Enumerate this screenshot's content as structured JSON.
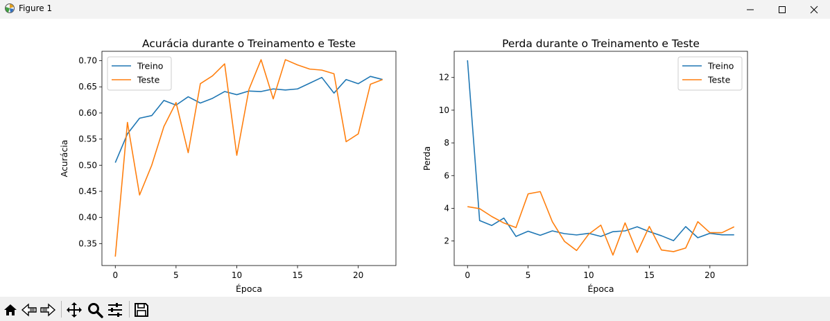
{
  "window": {
    "title": "Figure 1",
    "icon": "matplotlib-icon",
    "controls": [
      "minimize-icon",
      "maximize-icon",
      "close-icon"
    ]
  },
  "toolbar": {
    "buttons": [
      "home-icon",
      "back-arrow-icon",
      "forward-arrow-icon",
      "pan-icon",
      "zoom-icon",
      "configure-subplots-icon",
      "save-icon"
    ]
  },
  "colors": {
    "treino": "#1f77b4",
    "teste": "#ff7f0e"
  },
  "chart_data": [
    {
      "type": "line",
      "title": "Acurácia durante o Treinamento e Teste",
      "xlabel": "Época",
      "ylabel": "Acurácia",
      "xlim": [
        -1.1,
        23.1
      ],
      "ylim": [
        0.308,
        0.718
      ],
      "xticks": [
        0,
        5,
        10,
        15,
        20
      ],
      "yticks": [
        0.35,
        0.4,
        0.45,
        0.5,
        0.55,
        0.6,
        0.65,
        0.7
      ],
      "ytick_labels": [
        "0.35",
        "0.40",
        "0.45",
        "0.50",
        "0.55",
        "0.60",
        "0.65",
        "0.70"
      ],
      "legend": "upper-left",
      "x": [
        0,
        1,
        2,
        3,
        4,
        5,
        6,
        7,
        8,
        9,
        10,
        11,
        12,
        13,
        14,
        15,
        16,
        17,
        18,
        19,
        20,
        21,
        22
      ],
      "series": [
        {
          "name": "Treino",
          "color": "#1f77b4",
          "values": [
            0.505,
            0.56,
            0.59,
            0.595,
            0.624,
            0.615,
            0.631,
            0.619,
            0.628,
            0.641,
            0.635,
            0.642,
            0.641,
            0.646,
            0.644,
            0.646,
            0.657,
            0.668,
            0.638,
            0.664,
            0.656,
            0.67,
            0.664
          ]
        },
        {
          "name": "Teste",
          "color": "#ff7f0e",
          "values": [
            0.325,
            0.582,
            0.443,
            0.5,
            0.574,
            0.62,
            0.524,
            0.656,
            0.671,
            0.694,
            0.519,
            0.645,
            0.702,
            0.627,
            0.702,
            0.692,
            0.684,
            0.682,
            0.675,
            0.545,
            0.56,
            0.655,
            0.664
          ]
        }
      ]
    },
    {
      "type": "line",
      "title": "Perda durante o Treinamento e Teste",
      "xlabel": "Época",
      "ylabel": "Perda",
      "xlim": [
        -1.1,
        23.1
      ],
      "ylim": [
        0.5,
        13.6
      ],
      "xticks": [
        0,
        5,
        10,
        15,
        20
      ],
      "yticks": [
        2,
        4,
        6,
        8,
        10,
        12
      ],
      "ytick_labels": [
        "2",
        "4",
        "6",
        "8",
        "10",
        "12"
      ],
      "legend": "upper-right",
      "x": [
        0,
        1,
        2,
        3,
        4,
        5,
        6,
        7,
        8,
        9,
        10,
        11,
        12,
        13,
        14,
        15,
        16,
        17,
        18,
        19,
        20,
        21,
        22
      ],
      "series": [
        {
          "name": "Treino",
          "color": "#1f77b4",
          "values": [
            13.05,
            3.25,
            2.95,
            3.4,
            2.28,
            2.6,
            2.35,
            2.62,
            2.45,
            2.37,
            2.47,
            2.28,
            2.57,
            2.62,
            2.87,
            2.57,
            2.32,
            2.02,
            2.88,
            2.2,
            2.47,
            2.38,
            2.38
          ]
        },
        {
          "name": "Teste",
          "color": "#ff7f0e",
          "values": [
            4.1,
            3.98,
            3.5,
            3.1,
            2.82,
            4.88,
            5.02,
            3.18,
            1.98,
            1.42,
            2.42,
            2.97,
            1.14,
            3.11,
            1.3,
            2.89,
            1.45,
            1.35,
            1.57,
            3.18,
            2.51,
            2.51,
            2.87
          ]
        }
      ]
    }
  ]
}
